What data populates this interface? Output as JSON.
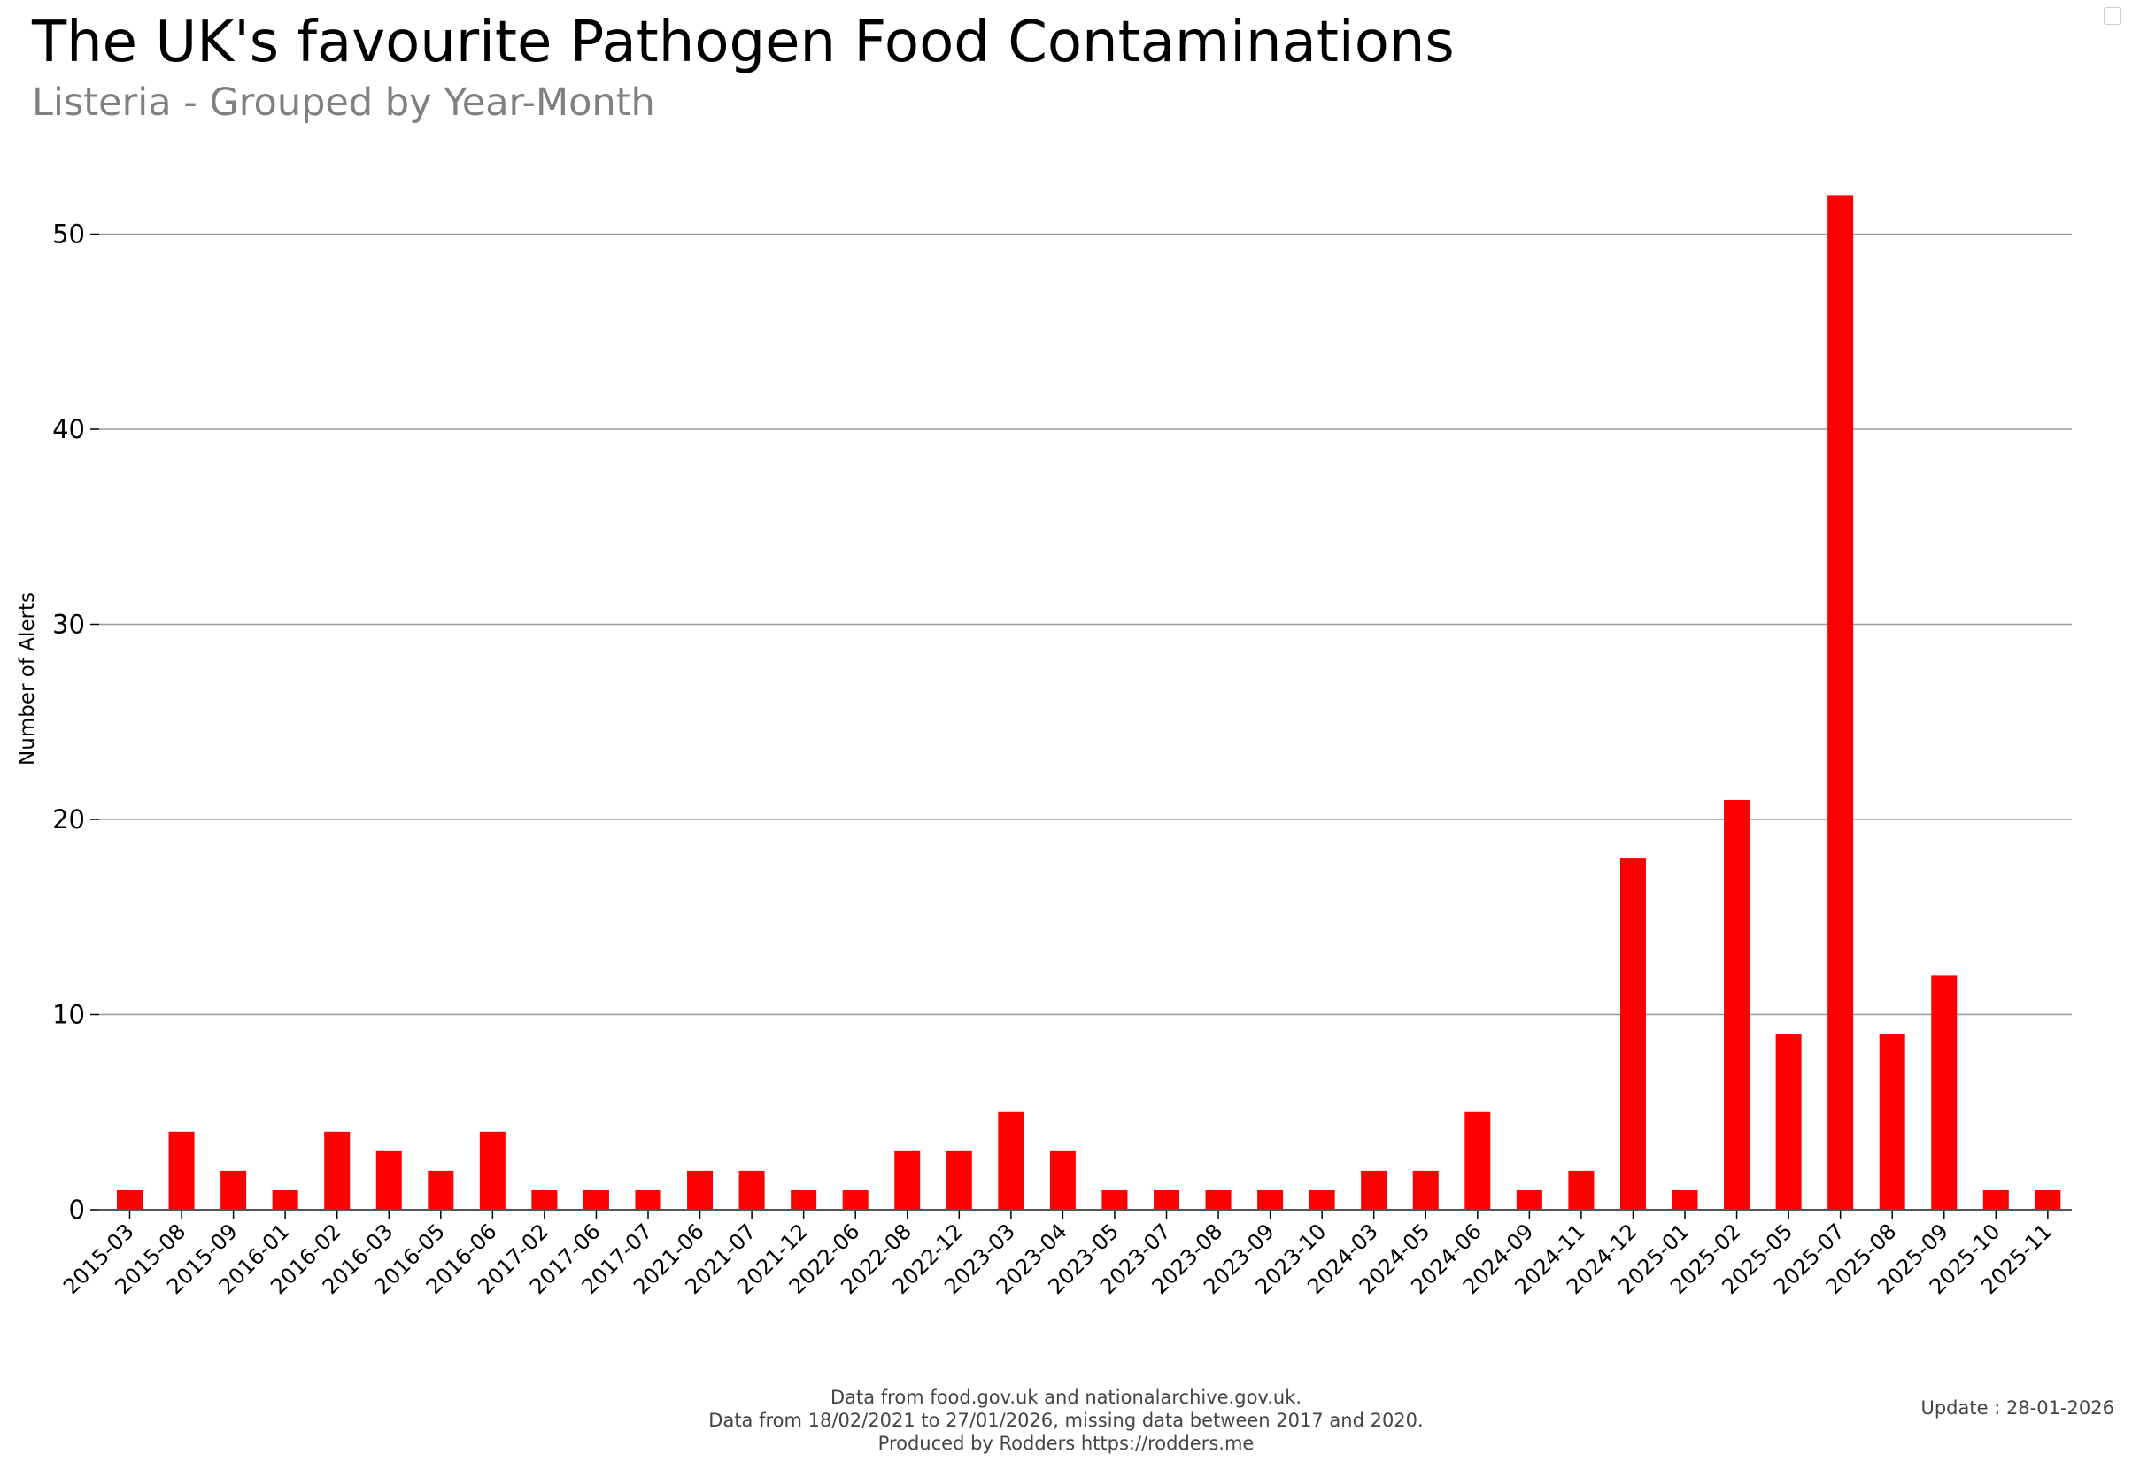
{
  "header": {
    "title": "The UK's favourite Pathogen Food Contaminations",
    "subtitle": "Listeria - Grouped by Year-Month"
  },
  "footer": {
    "line1": "Data from food.gov.uk and nationalarchive.gov.uk.",
    "line2": "Data from 18/02/2021 to 27/01/2026, missing data between 2017 and 2020.",
    "line3": "Produced by Rodders https://rodders.me",
    "update": "Update : 28-01-2026"
  },
  "chart_data": {
    "type": "bar",
    "title": "The UK's favourite Pathogen Food Contaminations",
    "subtitle": "Listeria - Grouped by Year-Month",
    "xlabel": "",
    "ylabel": "Number of Alerts",
    "ylim": [
      0,
      53
    ],
    "yticks": [
      0,
      10,
      20,
      30,
      40,
      50
    ],
    "grid": "horizontal",
    "bar_color": "#ff0000",
    "categories": [
      "2015-03",
      "2015-08",
      "2015-09",
      "2016-01",
      "2016-02",
      "2016-03",
      "2016-05",
      "2016-06",
      "2017-02",
      "2017-06",
      "2017-07",
      "2021-06",
      "2021-07",
      "2021-12",
      "2022-06",
      "2022-08",
      "2022-12",
      "2023-03",
      "2023-04",
      "2023-05",
      "2023-07",
      "2023-08",
      "2023-09",
      "2023-10",
      "2024-03",
      "2024-05",
      "2024-06",
      "2024-09",
      "2024-11",
      "2024-12",
      "2025-01",
      "2025-02",
      "2025-05",
      "2025-07",
      "2025-08",
      "2025-09",
      "2025-10",
      "2025-11"
    ],
    "values": [
      1,
      4,
      2,
      1,
      4,
      3,
      2,
      4,
      1,
      1,
      1,
      2,
      2,
      1,
      1,
      3,
      3,
      5,
      3,
      1,
      1,
      1,
      1,
      1,
      2,
      2,
      5,
      1,
      2,
      18,
      1,
      21,
      9,
      52,
      9,
      12,
      1,
      1
    ]
  }
}
